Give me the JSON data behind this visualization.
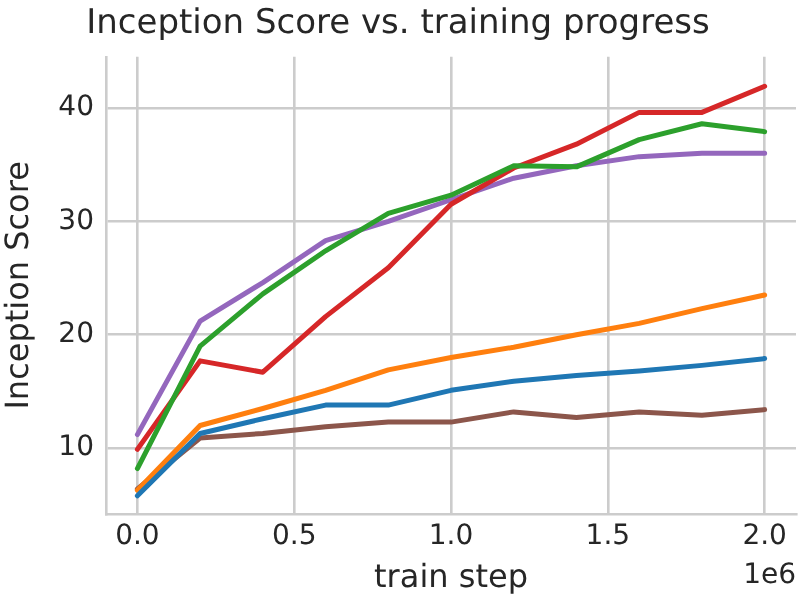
{
  "chart_data": {
    "type": "line",
    "title": "Inception Score vs. training progress",
    "xlabel": "train step",
    "ylabel": "Inception Score",
    "x": [
      0,
      0.2,
      0.4,
      0.6,
      0.8,
      1.0,
      1.2,
      1.4,
      1.6,
      1.8,
      2.0
    ],
    "series": [
      {
        "color": "#1f77b4",
        "values": [
          5.8,
          11.3,
          12.6,
          13.8,
          13.8,
          15.1,
          15.9,
          16.4,
          16.8,
          17.3,
          17.9
        ]
      },
      {
        "color": "#ff7f0e",
        "values": [
          6.3,
          12.0,
          13.5,
          15.1,
          16.9,
          18.0,
          18.9,
          20.0,
          21.0,
          22.3,
          23.5
        ]
      },
      {
        "color": "#2ca02c",
        "values": [
          8.2,
          19.0,
          23.6,
          27.4,
          30.7,
          32.3,
          34.9,
          34.8,
          37.2,
          38.6,
          37.9
        ]
      },
      {
        "color": "#d62728",
        "values": [
          9.9,
          17.7,
          16.7,
          21.6,
          25.9,
          31.5,
          34.7,
          36.8,
          39.6,
          39.6,
          41.9
        ]
      },
      {
        "color": "#9467bd",
        "values": [
          11.2,
          21.2,
          24.6,
          28.3,
          30.0,
          31.9,
          33.8,
          34.9,
          35.7,
          36.0,
          36.0
        ]
      },
      {
        "color": "#8c564b",
        "values": [
          6.4,
          10.9,
          11.3,
          11.9,
          12.3,
          12.3,
          13.2,
          12.7,
          13.2,
          12.9,
          13.4
        ]
      }
    ],
    "xlim": [
      -0.1,
      2.1
    ],
    "ylim": [
      4.2,
      44.5
    ],
    "xticks": [
      {
        "value": 0,
        "label": "0.0"
      },
      {
        "value": 0.5,
        "label": "0.5"
      },
      {
        "value": 1,
        "label": "1.0"
      },
      {
        "value": 1.5,
        "label": "1.5"
      },
      {
        "value": 2,
        "label": "2.0"
      }
    ],
    "yticks": [
      10,
      20,
      30,
      40
    ],
    "annotations": [
      "1e6"
    ],
    "grid": true,
    "legend": false,
    "marker": "none",
    "line_style": "solid"
  }
}
